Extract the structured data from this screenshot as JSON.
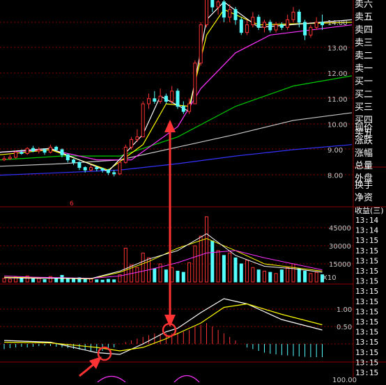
{
  "colors": {
    "background": "#000000",
    "up_candle": "#ff3333",
    "down_candle": "#54ffff",
    "ma_white": "#ffffff",
    "ma_yellow": "#ffff00",
    "ma_magenta": "#ff33ff",
    "ma_green": "#00cc00",
    "ma_gray": "#c8c8c8",
    "ma_blue": "#3333ff",
    "grid": "#8b0000",
    "annotation": "#ff3333"
  },
  "price_panel": {
    "axis_labels": [
      "14.00",
      "13.00",
      "12.00",
      "11.00",
      "10.00",
      "9.00",
      "8.00"
    ],
    "axis_values": [
      14,
      13,
      12,
      11,
      10,
      9,
      8
    ],
    "marker_label": "6"
  },
  "order_book": {
    "labels": [
      "卖六",
      "卖五",
      "卖四",
      "卖三",
      "卖二",
      "卖一",
      "买一",
      "买二",
      "买三",
      "买四",
      "买五"
    ]
  },
  "quote_fields": {
    "labels": [
      "现价",
      "涨跌",
      "涨幅",
      "总量",
      "外盘",
      "换手",
      "净资",
      "收益(三)"
    ]
  },
  "volume_panel": {
    "axis_labels": [
      "45000",
      "30000",
      "15000"
    ],
    "axis_values": [
      45000,
      30000,
      15000
    ],
    "unit_label": "X10"
  },
  "macd_panel": {
    "axis_labels": [
      "1.00",
      "0.50"
    ],
    "axis_values": [
      1.0,
      0.5
    ]
  },
  "bottom_panel": {
    "axis_label": "100.00"
  },
  "tick_times": [
    "13:14",
    "13:14",
    "13:15",
    "13:15",
    "13:15",
    "13:15",
    "13:15",
    "13:15",
    "13:15",
    "13:15",
    "13:15",
    "13:15",
    "13:15",
    "13:15",
    "13:15",
    "13:15"
  ]
}
